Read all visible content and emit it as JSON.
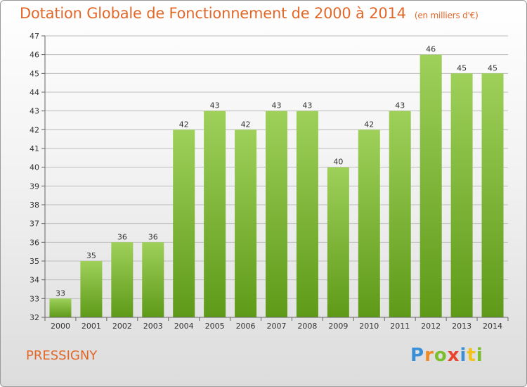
{
  "title": "Dotation Globale de Fonctionnement de 2000 à 2014",
  "unit": "(en milliers d'€)",
  "commune": "PRESSIGNY",
  "logo": {
    "letters": [
      "P",
      "r",
      "o",
      "x",
      "i",
      "t",
      "i"
    ],
    "colors": [
      "#3a8fd6",
      "#f08a24",
      "#7cbf2e",
      "#e8452c",
      "#3a8fd6",
      "#f2c21a",
      "#7cbf2e"
    ]
  },
  "colors": {
    "title": "#e2682a",
    "bar_top": "#9ed05a",
    "bar_bottom": "#5e9a18",
    "gridline": "#bdbdbd"
  },
  "chart_data": {
    "type": "bar",
    "title": "Dotation Globale de Fonctionnement de 2000 à 2014",
    "categories": [
      "2000",
      "2001",
      "2002",
      "2003",
      "2004",
      "2005",
      "2006",
      "2007",
      "2008",
      "2009",
      "2010",
      "2011",
      "2012",
      "2013",
      "2014"
    ],
    "values": [
      33,
      35,
      36,
      36,
      42,
      43,
      42,
      43,
      43,
      40,
      42,
      43,
      46,
      45,
      45
    ],
    "ylim": [
      32,
      47
    ],
    "yticks": [
      32,
      33,
      34,
      35,
      36,
      37,
      38,
      39,
      40,
      41,
      42,
      43,
      44,
      45,
      46,
      47
    ],
    "grid": true,
    "data_labels": true
  }
}
